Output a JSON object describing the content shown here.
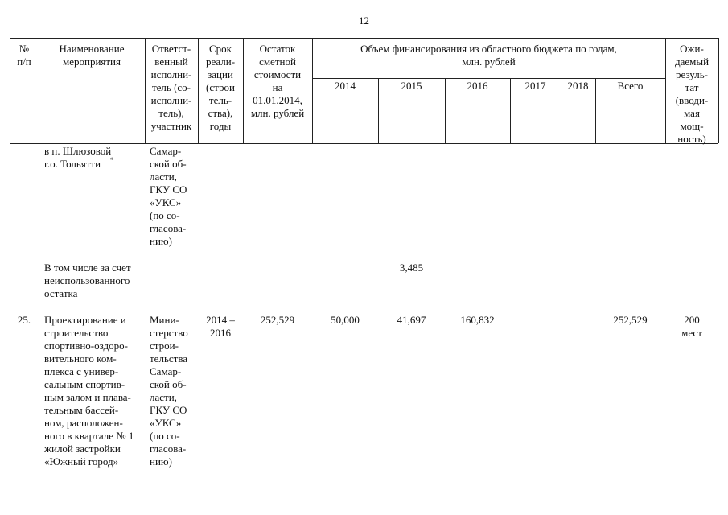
{
  "page_number": "12",
  "header": {
    "columns": [
      [
        "№",
        "п/п"
      ],
      [
        "Наименование",
        "мероприятия"
      ],
      [
        "Ответст-",
        "венный",
        "исполни-",
        "тель (со-",
        "исполни-",
        "тель),",
        "участник"
      ],
      [
        "Срок",
        "реали-",
        "зации",
        "(строи",
        "тель-",
        "ства),",
        "годы"
      ],
      [
        "Остаток",
        "сметной",
        "стоимости",
        "на",
        "01.01.2014,",
        "млн. рублей"
      ]
    ],
    "financing": [
      "Объем финансирования из областного бюджета по годам,",
      "млн. рублей"
    ],
    "years": [
      "2014",
      "2015",
      "2016",
      "2017",
      "2018",
      "Всего"
    ],
    "result": [
      "Ожи-",
      "даемый",
      "резуль-",
      "тат",
      "(вводи-",
      "мая",
      "мощ-",
      "ность)"
    ]
  },
  "rows": [
    {
      "name": [
        "в п. Шлюзовой",
        "г.о. Тольятти"
      ],
      "name_note": "*",
      "executor": [
        "Самар-",
        "ской об-",
        "ласти,",
        "ГКУ СО",
        "«УКС»",
        "(по со-",
        "гласова-",
        "нию)"
      ]
    },
    {
      "name": [
        "В том числе за счет",
        "неиспользованного",
        "остатка"
      ],
      "financing": {
        "2015": "3,485"
      }
    },
    {
      "number": "25.",
      "name": [
        "Проектирование и",
        "строительство",
        "спортивно-оздоро-",
        "вительного ком-",
        "плекса с универ-",
        "сальным спортив-",
        "ным залом и плава-",
        "тельным бассей-",
        "ном, расположен-",
        "ного в квартале № 1",
        "жилой застройки",
        "«Южный город»"
      ],
      "executor": [
        "Мини-",
        "стерство",
        "строи-",
        "тельства",
        "Самар-",
        "ской об-",
        "ласти,",
        "ГКУ СО",
        "«УКС»",
        "(по со-",
        "гласова-",
        "нию)"
      ],
      "period": [
        "2014 –",
        "2016"
      ],
      "remainder": "252,529",
      "financing": {
        "2014": "50,000",
        "2015": "41,697",
        "2016": "160,832",
        "Всего": "252,529"
      },
      "result": [
        "200",
        "мест"
      ]
    }
  ]
}
